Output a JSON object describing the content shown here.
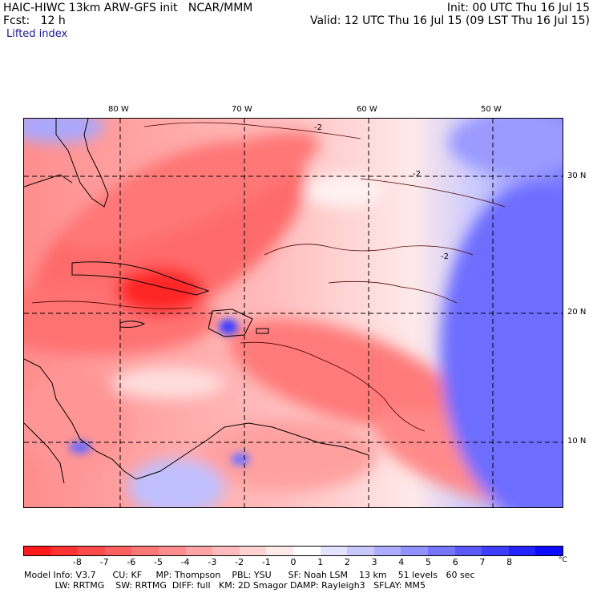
{
  "header": {
    "model_line": "HAIC-HIWC 13km ARW-GFS init   NCAR/MMM",
    "init_line": "Init: 00 UTC Thu 16 Jul 15",
    "fcst_line": "Fcst:   12 h",
    "valid_line": "Valid: 12 UTC Thu 16 Jul 15 (09 LST Thu 16 Jul 15)",
    "field_name": "Lifted index"
  },
  "map": {
    "lon_labels": [
      "80 W",
      "70 W",
      "60 W",
      "50 W"
    ],
    "lat_labels": [
      "30 N",
      "20 N",
      "10 N"
    ],
    "contour_label": "-2"
  },
  "colorbar": {
    "colors": [
      "#ff1b1b",
      "#ff3232",
      "#ff4a4a",
      "#ff6060",
      "#ff7777",
      "#ff8d8d",
      "#ffa4a4",
      "#ffbbbb",
      "#ffd2d2",
      "#ffe9e9",
      "#ffffff",
      "#e3e3ff",
      "#c8c8ff",
      "#acacff",
      "#9191ff",
      "#7575ff",
      "#5a5aff",
      "#3e3eff",
      "#2323ff",
      "#0b0bff"
    ],
    "tick_labels": [
      "-8",
      "-7",
      "-6",
      "-5",
      "-4",
      "-3",
      "-2",
      "-1",
      "0",
      "1",
      "2",
      "3",
      "4",
      "5",
      "6",
      "7",
      "8"
    ],
    "unit": "°C"
  },
  "footer": {
    "line1": "Model Info: V3.7      CU: KF     MP: Thompson    PBL: YSU      SF: Noah LSM    13 km    51 levels   60 sec",
    "line2": "           LW: RRTMG    SW: RRTMG  DIFF: full   KM: 2D Smagor DAMP: Rayleigh3   SFLAY: MM5"
  }
}
